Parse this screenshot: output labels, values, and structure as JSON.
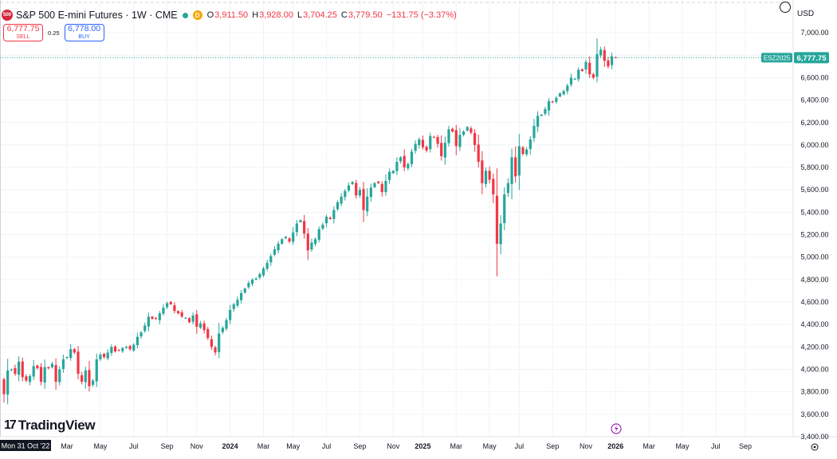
{
  "header": {
    "logo_text": "500",
    "symbol": "S&P 500 E-mini Futures · 1W · CME",
    "indicator_d": "D",
    "ohlc": {
      "o_label": "O",
      "o": "3,911.50",
      "h_label": "H",
      "h": "3,928.00",
      "l_label": "L",
      "l": "3,704.25",
      "c_label": "C",
      "c": "3,779.50",
      "change": "−131.75 (−3.37%)"
    }
  },
  "trade": {
    "sell_price": "6,777.75",
    "sell_label": "SELL",
    "spread": "0.25",
    "buy_price": "6,778.00",
    "buy_label": "BUY"
  },
  "axis": {
    "currency": "USD",
    "price_tag_symbol": "ESZ2025",
    "price_tag_value": "6,777.75",
    "crosshair_date": "Mon 31 Oct '22",
    "watermark": "TradingView"
  },
  "colors": {
    "up": "#26a69a",
    "down": "#f23645",
    "grid": "#f0f3fa",
    "price_line": "#26a69a",
    "sell": "#f23645",
    "buy": "#2962ff"
  },
  "chart_data": {
    "type": "candlestick",
    "title": "S&P 500 E-mini Futures · 1W · CME",
    "interval": "1W",
    "grid": true,
    "ylim": [
      3400,
      7150
    ],
    "y_ticks": [
      3400,
      3600,
      3800,
      4000,
      4200,
      4400,
      4600,
      4800,
      5000,
      5200,
      5400,
      5600,
      5800,
      6000,
      6200,
      6400,
      6600,
      6800,
      7000
    ],
    "y_tick_labels": [
      "3,400.00",
      "3,600.00",
      "3,800.00",
      "4,000.00",
      "4,200.00",
      "4,400.00",
      "4,600.00",
      "4,800.00",
      "5,000.00",
      "5,200.00",
      "5,400.00",
      "5,600.00",
      "5,800.00",
      "6,000.00",
      "6,200.00",
      "6,400.00",
      "6,600.00",
      "6,800.00",
      "7,000.00"
    ],
    "x_ticks": [
      {
        "label": "Mar",
        "week": 17,
        "bold": false
      },
      {
        "label": "May",
        "week": 26,
        "bold": false
      },
      {
        "label": "Jul",
        "week": 35,
        "bold": false
      },
      {
        "label": "Sep",
        "week": 44,
        "bold": false
      },
      {
        "label": "Nov",
        "week": 52,
        "bold": false
      },
      {
        "label": "2024",
        "week": 61,
        "bold": true
      },
      {
        "label": "Mar",
        "week": 70,
        "bold": false
      },
      {
        "label": "May",
        "week": 78,
        "bold": false
      },
      {
        "label": "Jul",
        "week": 87,
        "bold": false
      },
      {
        "label": "Sep",
        "week": 96,
        "bold": false
      },
      {
        "label": "Nov",
        "week": 105,
        "bold": false
      },
      {
        "label": "2025",
        "week": 113,
        "bold": true
      },
      {
        "label": "Mar",
        "week": 122,
        "bold": false
      },
      {
        "label": "May",
        "week": 131,
        "bold": false
      },
      {
        "label": "Jul",
        "week": 139,
        "bold": false
      },
      {
        "label": "Sep",
        "week": 148,
        "bold": false
      },
      {
        "label": "Nov",
        "week": 157,
        "bold": false
      },
      {
        "label": "2026",
        "week": 165,
        "bold": true
      },
      {
        "label": "Mar",
        "week": 174,
        "bold": false
      },
      {
        "label": "May",
        "week": 183,
        "bold": false
      },
      {
        "label": "Jul",
        "week": 192,
        "bold": false
      },
      {
        "label": "Sep",
        "week": 200,
        "bold": false
      }
    ],
    "last_price": 6777.75,
    "closes": [
      3780,
      3990,
      4000,
      3960,
      4070,
      3930,
      3900,
      3940,
      4030,
      4010,
      3890,
      4020,
      4010,
      4050,
      3890,
      4000,
      4090,
      4110,
      4180,
      4150,
      3960,
      3890,
      3990,
      3850,
      3900,
      4090,
      4130,
      4110,
      4150,
      4200,
      4160,
      4170,
      4190,
      4200,
      4180,
      4220,
      4290,
      4330,
      4390,
      4470,
      4450,
      4450,
      4500,
      4550,
      4590,
      4580,
      4520,
      4500,
      4470,
      4460,
      4420,
      4480,
      4380,
      4410,
      4350,
      4280,
      4200,
      4150,
      4320,
      4370,
      4440,
      4530,
      4580,
      4620,
      4680,
      4720,
      4770,
      4800,
      4810,
      4850,
      4900,
      4950,
      5010,
      5070,
      5120,
      5160,
      5180,
      5140,
      5220,
      5300,
      5330,
      5210,
      5060,
      5130,
      5160,
      5250,
      5290,
      5360,
      5340,
      5420,
      5490,
      5540,
      5590,
      5640,
      5670,
      5550,
      5600,
      5420,
      5540,
      5620,
      5660,
      5660,
      5580,
      5680,
      5760,
      5770,
      5850,
      5890,
      5800,
      5830,
      5940,
      6010,
      6050,
      5980,
      5950,
      6080,
      6070,
      6010,
      5900,
      6020,
      6140,
      6120,
      5990,
      6090,
      6120,
      6160,
      6110,
      6000,
      5850,
      5660,
      5770,
      5690,
      5560,
      5120,
      5300,
      5560,
      5660,
      5890,
      5720,
      5990,
      5920,
      5960,
      6050,
      6170,
      6260,
      6270,
      6320,
      6390,
      6380,
      6420,
      6460,
      6480,
      6530,
      6600,
      6590,
      6670,
      6660,
      6740,
      6630,
      6600,
      6810,
      6850,
      6750,
      6700,
      6790,
      6777.75
    ]
  }
}
